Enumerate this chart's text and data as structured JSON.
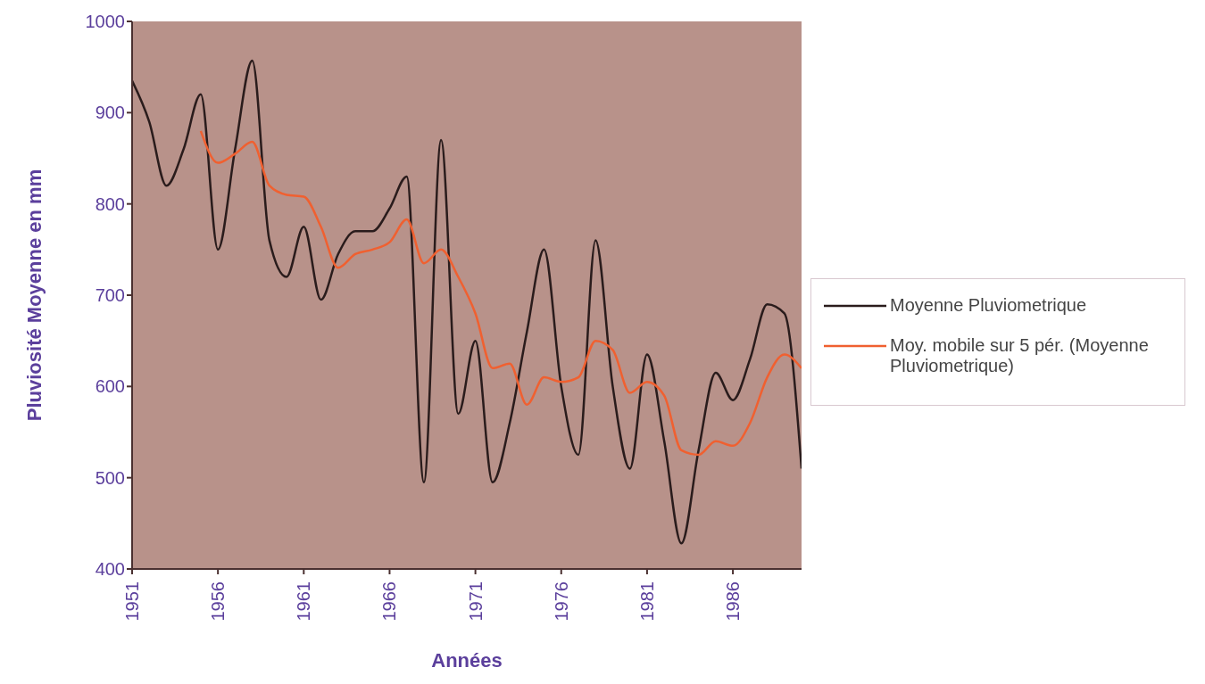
{
  "chart_data": {
    "type": "line",
    "xlabel": "Années",
    "ylabel": "Pluviosité Moyenne en mm",
    "x": [
      1951,
      1952,
      1953,
      1954,
      1955,
      1956,
      1957,
      1958,
      1959,
      1960,
      1961,
      1962,
      1963,
      1964,
      1965,
      1966,
      1967,
      1968,
      1969,
      1970,
      1971,
      1972,
      1973,
      1974,
      1975,
      1976,
      1977,
      1978,
      1979,
      1980,
      1981,
      1982,
      1983,
      1984,
      1985,
      1986,
      1987,
      1988,
      1989,
      1990
    ],
    "series": [
      {
        "name": "Moyenne Pluviometrique",
        "color": "#2a1c1c",
        "values": [
          935,
          890,
          820,
          860,
          920,
          750,
          860,
          957,
          760,
          720,
          775,
          695,
          745,
          770,
          770,
          795,
          830,
          495,
          870,
          570,
          650,
          495,
          560,
          660,
          750,
          600,
          525,
          760,
          600,
          510,
          635,
          540,
          428,
          530,
          615,
          585,
          630,
          690,
          680,
          510
        ]
      },
      {
        "name": "Moy. mobile sur 5 pér. (Moyenne Pluviometrique)",
        "color": "#f06030",
        "values": [
          null,
          null,
          null,
          null,
          880,
          845,
          855,
          868,
          820,
          810,
          808,
          775,
          730,
          745,
          750,
          758,
          783,
          735,
          750,
          720,
          680,
          620,
          625,
          580,
          610,
          605,
          610,
          650,
          640,
          593,
          605,
          590,
          530,
          525,
          540,
          535,
          560,
          610,
          635,
          620
        ]
      }
    ],
    "xlim": [
      1951,
      1990
    ],
    "xticks": [
      1951,
      1956,
      1961,
      1966,
      1971,
      1976,
      1981,
      1986
    ],
    "ylim": [
      400,
      1000
    ],
    "yticks": [
      400,
      500,
      600,
      700,
      800,
      900,
      1000
    ],
    "grid": false,
    "legend": "right",
    "marker": "none",
    "line_style": "solid"
  }
}
